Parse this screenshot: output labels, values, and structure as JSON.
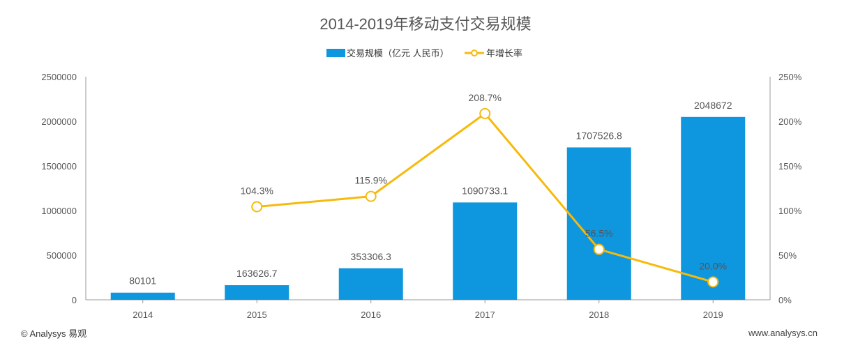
{
  "chart_data": {
    "type": "bar",
    "title": "2014-2019年移动支付交易规模",
    "categories": [
      "2014",
      "2015",
      "2016",
      "2017",
      "2018",
      "2019"
    ],
    "series": [
      {
        "name": "交易规模（亿元 人民币）",
        "type": "bar",
        "axis": "left",
        "values": [
          80101,
          163626.7,
          353306.3,
          1090733.1,
          1707526.8,
          2048672
        ],
        "labels": [
          "80101",
          "163626.7",
          "353306.3",
          "1090733.1",
          "1707526.8",
          "2048672"
        ],
        "color": "#0E96DE"
      },
      {
        "name": "年增长率",
        "type": "line",
        "axis": "right",
        "values": [
          null,
          104.3,
          115.9,
          208.7,
          56.5,
          20.0
        ],
        "labels": [
          null,
          "104.3%",
          "115.9%",
          "208.7%",
          "56.5%",
          "20.0%"
        ],
        "color": "#F7BA0B"
      }
    ],
    "y_left": {
      "ylim": [
        0,
        2500000
      ],
      "ticks": [
        "0",
        "500000",
        "1000000",
        "1500000",
        "2000000",
        "2500000"
      ]
    },
    "y_right": {
      "ylim": [
        0,
        250
      ],
      "ticks": [
        "0%",
        "50%",
        "100%",
        "150%",
        "200%",
        "250%"
      ]
    },
    "grid": false,
    "legend_position": "top-center"
  },
  "footer": {
    "source": "© Analysys 易观",
    "website": "www.analysys.cn"
  }
}
